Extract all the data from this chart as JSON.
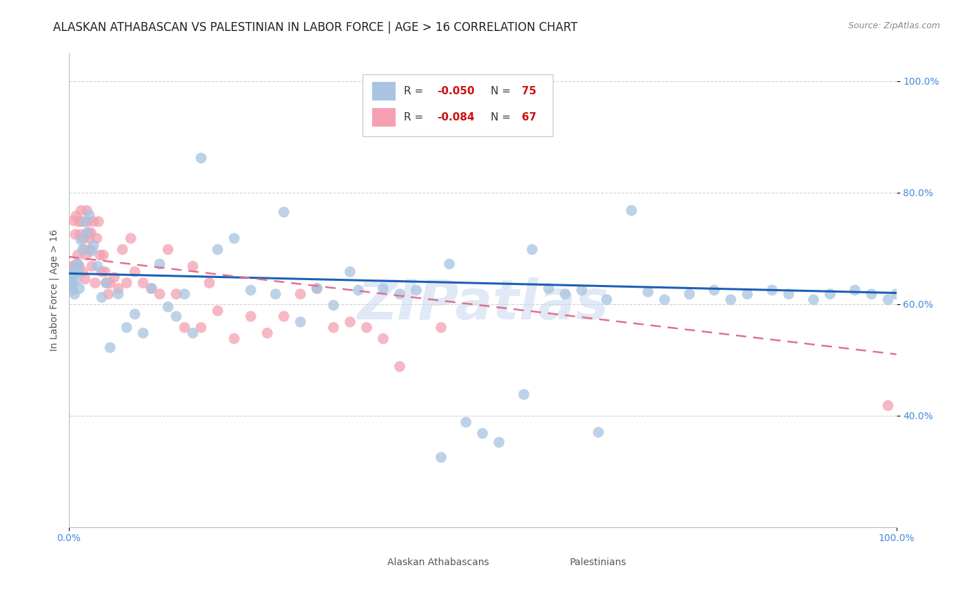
{
  "title": "ALASKAN ATHABASCAN VS PALESTINIAN IN LABOR FORCE | AGE > 16 CORRELATION CHART",
  "source": "Source: ZipAtlas.com",
  "ylabel": "In Labor Force | Age > 16",
  "scatter_color_alaskan": "#a8c4e0",
  "scatter_color_palestinian": "#f4a0b0",
  "line_color_alaskan": "#1a5fb4",
  "line_color_palestinian": "#e07090",
  "background_color": "#ffffff",
  "grid_color": "#cccccc",
  "watermark_text": "ZIPatlas",
  "title_fontsize": 12,
  "axis_label_fontsize": 10,
  "tick_fontsize": 10,
  "source_fontsize": 9,
  "alaskan_scatter_x": [
    0.001,
    0.002,
    0.003,
    0.004,
    0.005,
    0.006,
    0.007,
    0.008,
    0.009,
    0.01,
    0.011,
    0.012,
    0.013,
    0.015,
    0.017,
    0.02,
    0.022,
    0.025,
    0.028,
    0.03,
    0.035,
    0.04,
    0.045,
    0.05,
    0.06,
    0.07,
    0.08,
    0.09,
    0.1,
    0.11,
    0.12,
    0.13,
    0.14,
    0.15,
    0.16,
    0.18,
    0.2,
    0.22,
    0.25,
    0.28,
    0.3,
    0.32,
    0.35,
    0.38,
    0.4,
    0.42,
    0.45,
    0.48,
    0.5,
    0.52,
    0.55,
    0.58,
    0.6,
    0.62,
    0.65,
    0.68,
    0.7,
    0.72,
    0.75,
    0.78,
    0.8,
    0.82,
    0.85,
    0.87,
    0.9,
    0.92,
    0.95,
    0.97,
    0.99,
    1.0,
    0.26,
    0.34,
    0.46,
    0.56,
    0.64
  ],
  "alaskan_scatter_y": [
    0.64,
    0.635,
    0.645,
    0.63,
    0.625,
    0.66,
    0.618,
    0.655,
    0.642,
    0.668,
    0.672,
    0.658,
    0.628,
    0.715,
    0.698,
    0.748,
    0.728,
    0.76,
    0.695,
    0.705,
    0.668,
    0.612,
    0.638,
    0.522,
    0.618,
    0.558,
    0.582,
    0.548,
    0.628,
    0.672,
    0.595,
    0.578,
    0.618,
    0.548,
    0.862,
    0.698,
    0.718,
    0.625,
    0.618,
    0.568,
    0.628,
    0.598,
    0.625,
    0.628,
    0.618,
    0.625,
    0.325,
    0.388,
    0.368,
    0.352,
    0.438,
    0.628,
    0.618,
    0.625,
    0.608,
    0.768,
    0.622,
    0.608,
    0.618,
    0.625,
    0.608,
    0.618,
    0.625,
    0.618,
    0.608,
    0.618,
    0.625,
    0.618,
    0.608,
    0.618,
    0.765,
    0.658,
    0.672,
    0.698,
    0.37
  ],
  "palestinian_scatter_x": [
    0.002,
    0.003,
    0.004,
    0.005,
    0.006,
    0.007,
    0.008,
    0.009,
    0.01,
    0.011,
    0.012,
    0.013,
    0.014,
    0.015,
    0.016,
    0.017,
    0.018,
    0.019,
    0.02,
    0.021,
    0.022,
    0.023,
    0.024,
    0.025,
    0.026,
    0.027,
    0.028,
    0.03,
    0.032,
    0.034,
    0.036,
    0.038,
    0.04,
    0.042,
    0.044,
    0.046,
    0.048,
    0.05,
    0.055,
    0.06,
    0.065,
    0.07,
    0.075,
    0.08,
    0.09,
    0.1,
    0.11,
    0.12,
    0.13,
    0.14,
    0.15,
    0.16,
    0.17,
    0.18,
    0.2,
    0.22,
    0.24,
    0.26,
    0.28,
    0.3,
    0.32,
    0.34,
    0.36,
    0.38,
    0.4,
    0.45,
    0.99
  ],
  "palestinian_scatter_y": [
    0.658,
    0.648,
    0.638,
    0.668,
    0.75,
    0.668,
    0.725,
    0.758,
    0.672,
    0.688,
    0.748,
    0.668,
    0.725,
    0.768,
    0.748,
    0.658,
    0.718,
    0.698,
    0.645,
    0.688,
    0.768,
    0.748,
    0.728,
    0.718,
    0.698,
    0.728,
    0.668,
    0.748,
    0.638,
    0.718,
    0.748,
    0.688,
    0.658,
    0.688,
    0.658,
    0.638,
    0.618,
    0.638,
    0.648,
    0.628,
    0.698,
    0.638,
    0.718,
    0.658,
    0.638,
    0.628,
    0.618,
    0.698,
    0.618,
    0.558,
    0.668,
    0.558,
    0.638,
    0.588,
    0.538,
    0.578,
    0.548,
    0.578,
    0.618,
    0.628,
    0.558,
    0.568,
    0.558,
    0.538,
    0.488,
    0.558,
    0.418
  ],
  "alaskan_line_x": [
    0.0,
    1.0
  ],
  "alaskan_line_y": [
    0.655,
    0.62
  ],
  "palestinian_line_x": [
    0.0,
    1.0
  ],
  "palestinian_line_y": [
    0.685,
    0.51
  ],
  "xlim": [
    0.0,
    1.0
  ],
  "ylim": [
    0.2,
    1.05
  ],
  "yticks": [
    0.4,
    0.6,
    0.8,
    1.0
  ],
  "ytick_labels": [
    "40.0%",
    "60.0%",
    "80.0%",
    "100.0%"
  ],
  "xticks": [
    0.0,
    1.0
  ],
  "xtick_labels": [
    "0.0%",
    "100.0%"
  ]
}
